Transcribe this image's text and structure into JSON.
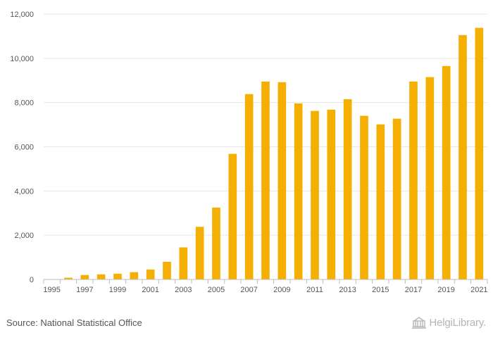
{
  "chart_data": {
    "type": "bar",
    "title": "",
    "xlabel": "",
    "ylabel": "",
    "ylim": [
      0,
      12000
    ],
    "yticks": [
      0,
      2000,
      4000,
      6000,
      8000,
      10000,
      12000
    ],
    "ytick_labels": [
      "0",
      "2,000",
      "4,000",
      "6,000",
      "8,000",
      "10,000",
      "12,000"
    ],
    "categories": [
      "1995",
      "1996",
      "1997",
      "1998",
      "1999",
      "2000",
      "2001",
      "2002",
      "2003",
      "2004",
      "2005",
      "2006",
      "2007",
      "2008",
      "2009",
      "2010",
      "2011",
      "2012",
      "2013",
      "2014",
      "2015",
      "2016",
      "2017",
      "2018",
      "2019",
      "2020",
      "2021"
    ],
    "xtick_labels": [
      "1995",
      "1997",
      "1999",
      "2001",
      "2003",
      "2005",
      "2007",
      "2009",
      "2011",
      "2013",
      "2015",
      "2017",
      "2019",
      "2021"
    ],
    "values": [
      0,
      80,
      200,
      230,
      260,
      330,
      450,
      800,
      1450,
      2380,
      3250,
      5680,
      8380,
      8950,
      8920,
      7960,
      7620,
      7680,
      8150,
      7400,
      7010,
      7270,
      8950,
      9150,
      9650,
      11050,
      11380
    ],
    "bar_color": "#F5AF02",
    "grid": true
  },
  "footer": {
    "source": "Source: National Statistical Office",
    "logo_text": "HelgiLibrary."
  }
}
